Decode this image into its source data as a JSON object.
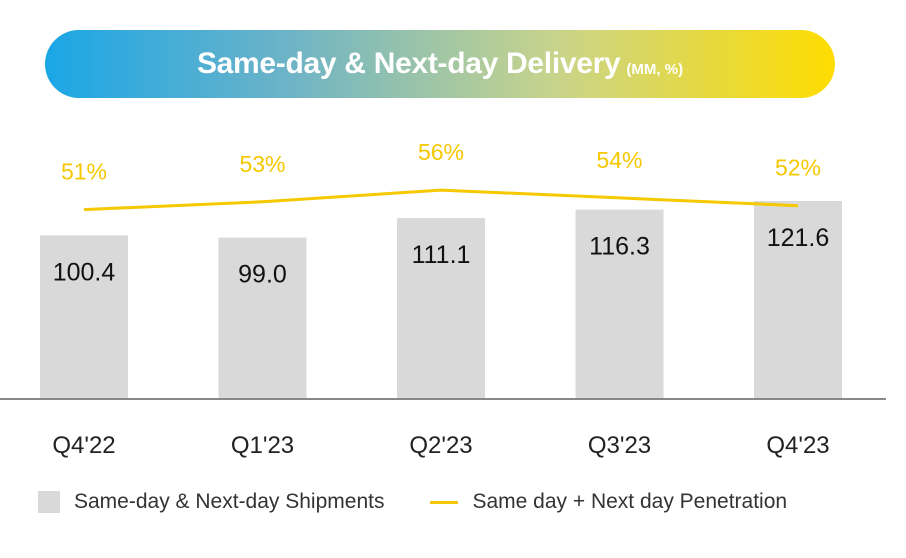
{
  "title": "Same-day & Next-day Delivery",
  "title_unit": "(MM, %)",
  "colors": {
    "bar": "#d9d9d9",
    "line": "#f5c800",
    "axis": "#888888"
  },
  "legend": {
    "bar_label": "Same-day & Next-day Shipments",
    "line_label": "Same day + Next day Penetration"
  },
  "chart_data": {
    "type": "bar",
    "categories": [
      "Q4'22",
      "Q1'23",
      "Q2'23",
      "Q3'23",
      "Q4'23"
    ],
    "series": [
      {
        "name": "Same-day & Next-day Shipments",
        "type": "bar",
        "values": [
          100.4,
          99.0,
          111.1,
          116.3,
          121.6
        ],
        "labels": [
          "100.4",
          "99.0",
          "111.1",
          "116.3",
          "121.6"
        ]
      },
      {
        "name": "Same day + Next day Penetration",
        "type": "line",
        "values": [
          51,
          53,
          56,
          54,
          52
        ],
        "labels": [
          "51%",
          "53%",
          "56%",
          "54%",
          "52%"
        ]
      }
    ],
    "ylim": [
      0,
      130
    ],
    "grid": false,
    "legend_position": "bottom"
  }
}
